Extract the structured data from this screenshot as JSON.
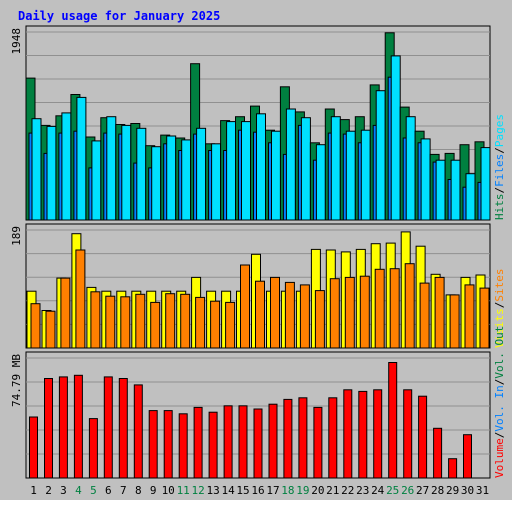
{
  "colors": {
    "background": "#c0c0c0",
    "plot_area": "#c0c0c0",
    "grid": "#909090",
    "title": "#0000ff",
    "hits": "#008040",
    "files": "#0080ff",
    "pages": "#00e0ff",
    "visits": "#ffff00",
    "sites": "#ff8000",
    "kbytes": "#ff0000",
    "bar_outline": "#000000",
    "weekend_label": "#008040",
    "weekday_label": "#000000"
  },
  "chart_data": {
    "type": "bar",
    "title": "Daily usage for January 2025",
    "categories": [
      "1",
      "2",
      "3",
      "4",
      "5",
      "6",
      "7",
      "8",
      "9",
      "10",
      "11",
      "12",
      "13",
      "14",
      "15",
      "16",
      "17",
      "18",
      "19",
      "20",
      "21",
      "22",
      "23",
      "24",
      "25",
      "26",
      "27",
      "28",
      "29",
      "30",
      "31"
    ],
    "weekend_days": [
      "4",
      "5",
      "11",
      "12",
      "18",
      "19",
      "25",
      "26"
    ],
    "panels": [
      {
        "name": "hits-files-pages",
        "axis_max_label": "1948",
        "ylim": [
          0,
          1948
        ],
        "grid": true,
        "legend": [
          "Hits",
          "/",
          "Files",
          "/",
          "Pages"
        ],
        "series": [
          {
            "name": "Hits",
            "color": "hits",
            "values": [
              1470,
              980,
              1080,
              1300,
              860,
              1060,
              990,
              1000,
              770,
              880,
              850,
              1620,
              790,
              1030,
              1070,
              1180,
              930,
              1380,
              1120,
              800,
              1150,
              1040,
              1070,
              1400,
              1940,
              1170,
              920,
              680,
              690,
              780,
              810
            ]
          },
          {
            "name": "Files",
            "color": "files",
            "values": [
              900,
              690,
              900,
              920,
              540,
              900,
              890,
              590,
              540,
              790,
              720,
              890,
              720,
              720,
              930,
              910,
              800,
              680,
              980,
              620,
              900,
              890,
              800,
              980,
              1480,
              850,
              800,
              600,
              420,
              340,
              390
            ]
          },
          {
            "name": "Pages",
            "color": "pages",
            "values": [
              1050,
              970,
              1110,
              1270,
              820,
              1070,
              980,
              950,
              760,
              870,
              830,
              950,
              790,
              1020,
              1020,
              1100,
              920,
              1150,
              1060,
              780,
              1070,
              920,
              930,
              1340,
              1700,
              1070,
              840,
              620,
              620,
              480,
              750
            ]
          }
        ]
      },
      {
        "name": "visits-sites",
        "axis_max_label": "189",
        "ylim": [
          0,
          189
        ],
        "grid": true,
        "legend": [
          "Visits",
          "/",
          "Sites"
        ],
        "series": [
          {
            "name": "Visits",
            "color": "visits",
            "values": [
              91,
              60,
              112,
              183,
              97,
              91,
              91,
              91,
              91,
              91,
              91,
              113,
              91,
              91,
              91,
              150,
              91,
              91,
              91,
              158,
              157,
              154,
              158,
              167,
              168,
              186,
              163,
              118,
              85,
              113,
              117
            ]
          },
          {
            "name": "Sites",
            "color": "sites",
            "values": [
              71,
              59,
              112,
              157,
              90,
              83,
              82,
              86,
              73,
              87,
              86,
              81,
              75,
              73,
              133,
              107,
              113,
              105,
              101,
              92,
              111,
              113,
              115,
              126,
              127,
              135,
              104,
              113,
              85,
              101,
              96
            ]
          }
        ]
      },
      {
        "name": "volume",
        "axis_max_label": "74.79 MB",
        "ylim": [
          0,
          74.79
        ],
        "grid": true,
        "legend": [
          "Volume",
          "/",
          "Vol. In",
          "/",
          "Vol. Out"
        ],
        "series": [
          {
            "name": "Volume",
            "color": "kbytes",
            "values": [
              38,
              62,
              63,
              64,
              37,
              63,
              62,
              58,
              42,
              42,
              40,
              44,
              41,
              45,
              45,
              43,
              46,
              49,
              50,
              44,
              50,
              55,
              54,
              55,
              72,
              55,
              51,
              31,
              12,
              27,
              0
            ]
          }
        ]
      }
    ]
  }
}
